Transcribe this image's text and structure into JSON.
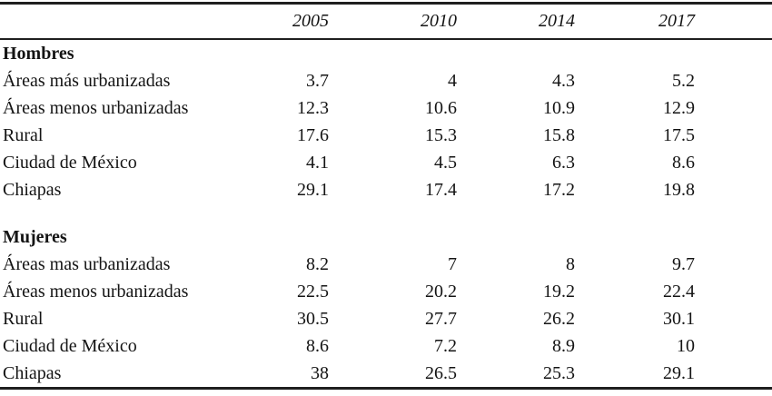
{
  "chart_data": {
    "type": "table",
    "header": {
      "corner": "",
      "years": [
        "2005",
        "2010",
        "2014",
        "2017"
      ]
    },
    "sections": [
      {
        "title": "Hombres",
        "rows": [
          {
            "label": "Áreas más urbanizadas",
            "values": [
              "3.7",
              "4",
              "4.3",
              "5.2"
            ]
          },
          {
            "label": "Áreas menos urbanizadas",
            "values": [
              "12.3",
              "10.6",
              "10.9",
              "12.9"
            ]
          },
          {
            "label": "Rural",
            "values": [
              "17.6",
              "15.3",
              "15.8",
              "17.5"
            ]
          },
          {
            "label": "Ciudad de México",
            "values": [
              "4.1",
              "4.5",
              "6.3",
              "8.6"
            ]
          },
          {
            "label": "Chiapas",
            "values": [
              "29.1",
              "17.4",
              "17.2",
              "19.8"
            ]
          }
        ]
      },
      {
        "title": "Mujeres",
        "rows": [
          {
            "label": "Áreas mas urbanizadas",
            "values": [
              "8.2",
              "7",
              "8",
              "9.7"
            ]
          },
          {
            "label": "Áreas menos urbanizadas",
            "values": [
              "22.5",
              "20.2",
              "19.2",
              "22.4"
            ]
          },
          {
            "label": "Rural",
            "values": [
              "30.5",
              "27.7",
              "26.2",
              "30.1"
            ]
          },
          {
            "label": "Ciudad de México",
            "values": [
              "8.6",
              "7.2",
              "8.9",
              "10"
            ]
          },
          {
            "label": "Chiapas",
            "values": [
              "38",
              "26.5",
              "25.3",
              "29.1"
            ]
          }
        ]
      }
    ],
    "layout": {
      "grid": "horizontal-rules-only",
      "value_alignment": "right",
      "header_style": "italic",
      "text_color": "#141414",
      "rule_color": "#1f1f1f",
      "background_color": "#ffffff"
    }
  }
}
